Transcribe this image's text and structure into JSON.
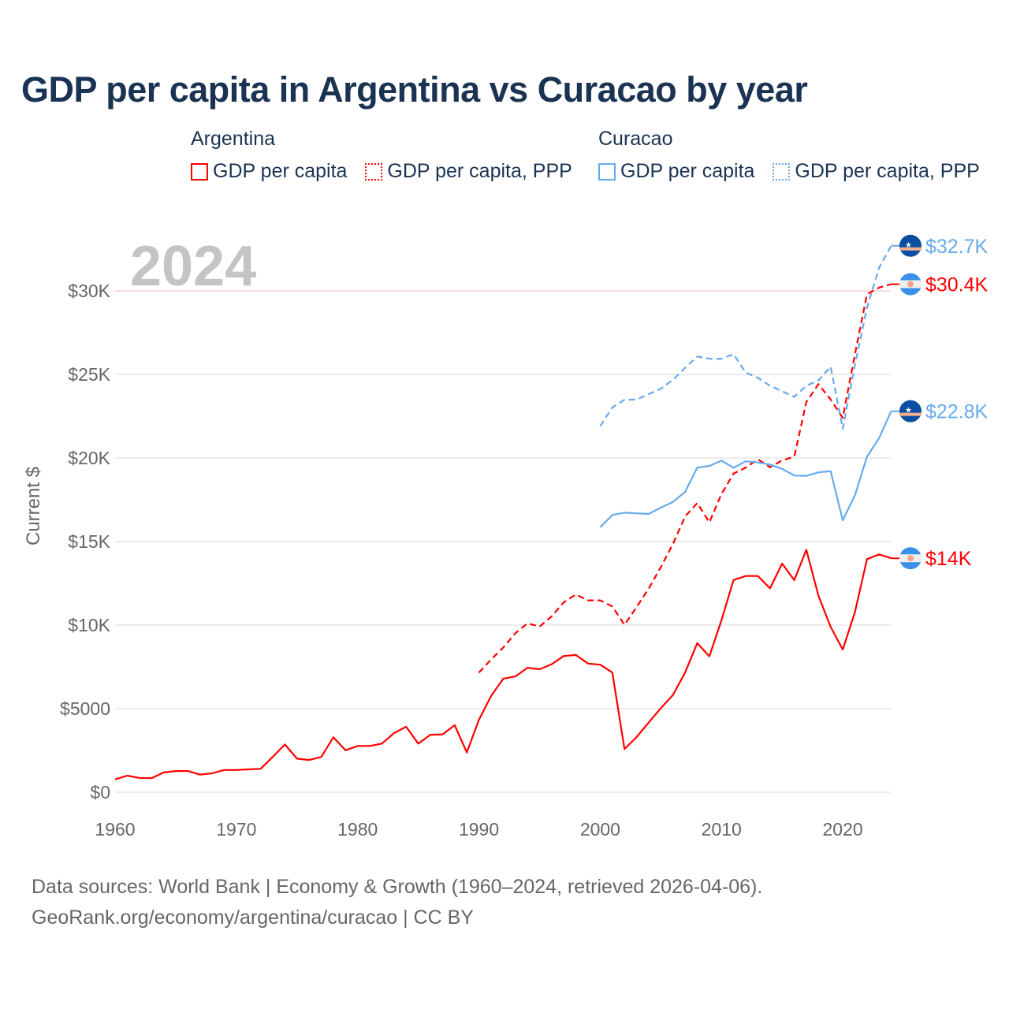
{
  "title": "GDP per capita in Argentina vs Curacao by year",
  "legend": {
    "groups": [
      {
        "name": "Argentina",
        "items": [
          "GDP per capita",
          "GDP per capita, PPP"
        ],
        "color": "#ff0000"
      },
      {
        "name": "Curacao",
        "items": [
          "GDP per capita",
          "GDP per capita, PPP"
        ],
        "color": "#66aaee"
      }
    ]
  },
  "footer": {
    "line1": "Data sources: World Bank | Economy & Growth (1960–2024, retrieved 2026-04-06).",
    "line2": "GeoRank.org/economy/argentina/curacao | CC BY"
  },
  "chart_data": {
    "type": "line",
    "title": "GDP per capita in Argentina vs Curacao by year",
    "year_label": "2024",
    "ylabel": "Current $",
    "xlim": [
      1960,
      2024
    ],
    "ylim": [
      0,
      33000
    ],
    "xticks": [
      1960,
      1970,
      1980,
      1990,
      2000,
      2010,
      2020
    ],
    "xtick_labels": [
      "1960",
      "1970",
      "1980",
      "1990",
      "2000",
      "2010",
      "2020"
    ],
    "yticks": [
      0,
      5000,
      10000,
      15000,
      20000,
      25000,
      30000
    ],
    "ytick_labels": [
      "$0",
      "$5000",
      "$10K",
      "$15K",
      "$20K",
      "$25K",
      "$30K"
    ],
    "grid": true,
    "series": [
      {
        "name": "Argentina GDP per capita",
        "color": "#ff0000",
        "dash": false,
        "start": 1960,
        "end_label": "$14K",
        "flag": "argentina",
        "values": [
          770,
          990,
          860,
          840,
          1180,
          1270,
          1270,
          1050,
          1130,
          1330,
          1330,
          1370,
          1400,
          2120,
          2860,
          2010,
          1930,
          2110,
          3290,
          2510,
          2770,
          2770,
          2910,
          3540,
          3920,
          2910,
          3440,
          3460,
          4010,
          2380,
          4330,
          5750,
          6790,
          6930,
          7450,
          7360,
          7660,
          8150,
          8210,
          7700,
          7630,
          7160,
          2590,
          3300,
          4170,
          5030,
          5820,
          7160,
          8920,
          8130,
          10300,
          12700,
          12940,
          12940,
          12200,
          13680,
          12690,
          14510,
          11750,
          9900,
          8540,
          10770,
          13950,
          14230,
          14000
        ]
      },
      {
        "name": "Argentina GDP per capita, PPP",
        "color": "#ff0000",
        "dash": true,
        "start": 1990,
        "end_label": "$30.4K",
        "flag": "argentina",
        "values": [
          7160,
          7940,
          8650,
          9510,
          10110,
          9910,
          10530,
          11370,
          11830,
          11480,
          11480,
          11120,
          10020,
          11080,
          12180,
          13470,
          14860,
          16500,
          17300,
          16150,
          17850,
          19070,
          19420,
          19920,
          19450,
          19860,
          20080,
          23350,
          24420,
          23500,
          22400,
          26200,
          29800,
          30200,
          30400
        ]
      },
      {
        "name": "Curacao GDP per capita",
        "color": "#66aaee",
        "dash": false,
        "start": 2000,
        "end_label": "$22.8K",
        "flag": "curacao",
        "values": [
          15850,
          16590,
          16730,
          16690,
          16650,
          17030,
          17370,
          17970,
          19420,
          19530,
          19840,
          19420,
          19800,
          19730,
          19610,
          19350,
          18950,
          18930,
          19140,
          19210,
          16270,
          17770,
          20080,
          21200,
          22800
        ]
      },
      {
        "name": "Curacao GDP per capita, PPP",
        "color": "#66aaee",
        "dash": true,
        "start": 2000,
        "end_label": "$32.7K",
        "flag": "curacao",
        "values": [
          21900,
          23030,
          23480,
          23500,
          23820,
          24140,
          24680,
          25390,
          26070,
          25940,
          25940,
          26210,
          25110,
          24800,
          24320,
          24000,
          23660,
          24320,
          24640,
          25470,
          21750,
          25550,
          29000,
          31400,
          32700
        ]
      }
    ]
  }
}
